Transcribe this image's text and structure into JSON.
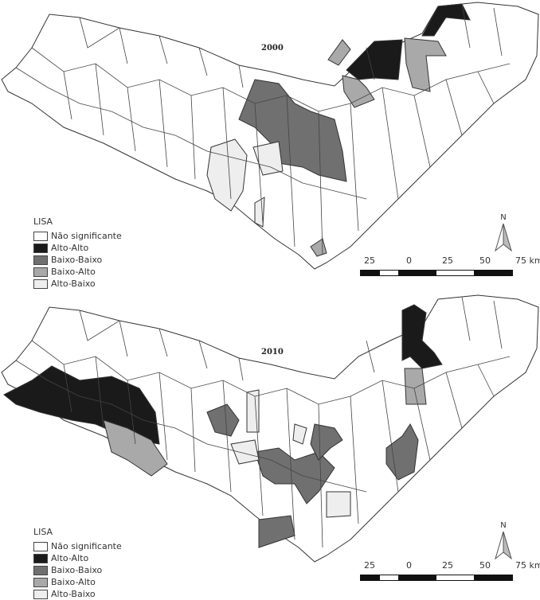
{
  "maps": [
    {
      "year": "2000"
    },
    {
      "year": "2010"
    }
  ],
  "legend": {
    "title": "LISA",
    "items": [
      {
        "label": "Não significante",
        "color": "#ffffff"
      },
      {
        "label": "Alto-Alto",
        "color": "#1a1a1a"
      },
      {
        "label": "Baixo-Baixo",
        "color": "#707070"
      },
      {
        "label": "Baixo-Alto",
        "color": "#a9a9a9"
      },
      {
        "label": "Alto-Baixo",
        "color": "#eeeeee"
      }
    ]
  },
  "scale": {
    "labels": [
      "25",
      "0",
      "25",
      "50",
      "75 km"
    ]
  },
  "north": {
    "label": "N"
  }
}
